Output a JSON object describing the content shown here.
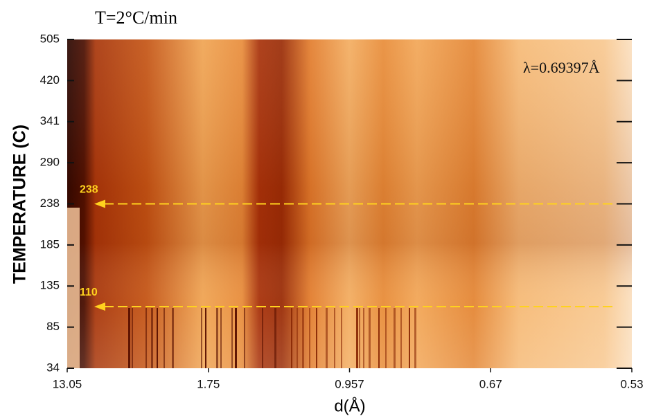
{
  "chart_data": {
    "type": "heatmap",
    "title": "T=2°C/min",
    "annotation": "λ=0.69397Å",
    "x_label": "d(Å)",
    "y_label": "TEMPERATURE (C)",
    "xlim": [
      13.05,
      0.53
    ],
    "xticks": [
      13.05,
      1.75,
      0.957,
      0.67,
      0.53
    ],
    "ylim": [
      34,
      505
    ],
    "yticks": [
      34,
      85,
      135,
      185,
      238,
      290,
      341,
      420,
      505
    ],
    "arrows": [
      238,
      110
    ],
    "arrow_color": "#ffd21e"
  }
}
